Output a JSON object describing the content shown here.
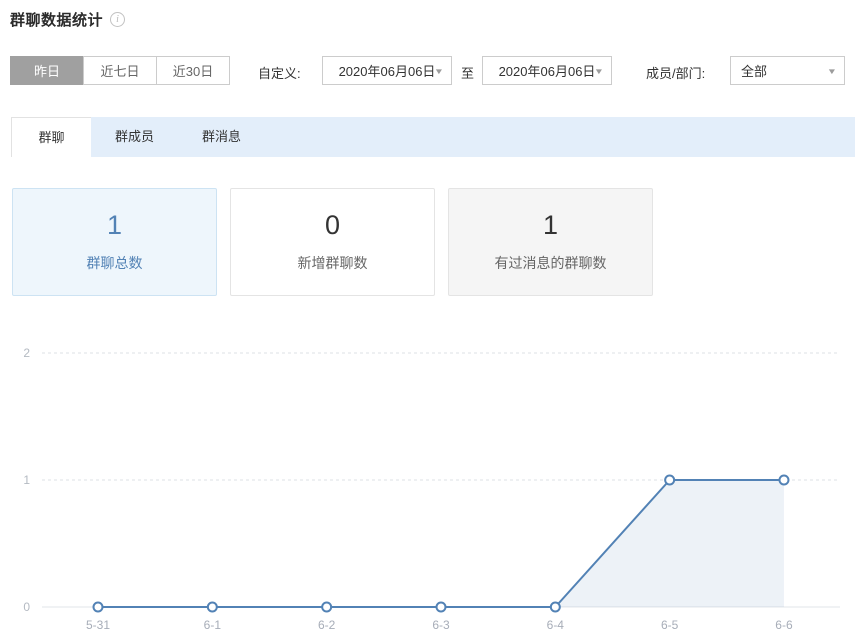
{
  "page": {
    "title": "群聊数据统计",
    "info_icon_glyph": "i"
  },
  "filters": {
    "quick_ranges": [
      {
        "label": "昨日",
        "selected": true
      },
      {
        "label": "近七日",
        "selected": false
      },
      {
        "label": "近30日",
        "selected": false
      }
    ],
    "custom_label": "自定义:",
    "date_from": "2020年06月06日",
    "to_label": "至",
    "date_to": "2020年06月06日",
    "member_label": "成员/部门:",
    "member_value": "全部"
  },
  "tabs": [
    {
      "label": "群聊",
      "active": true
    },
    {
      "label": "群成员",
      "active": false
    },
    {
      "label": "群消息",
      "active": false
    }
  ],
  "stats": [
    {
      "value": "1",
      "label": "群聊总数",
      "state": "selected"
    },
    {
      "value": "0",
      "label": "新增群聊数",
      "state": "normal"
    },
    {
      "value": "1",
      "label": "有过消息的群聊数",
      "state": "muted"
    }
  ],
  "colors": {
    "accent_blue": "#5282b5",
    "selected_card_bg": "#eef6fc",
    "selected_card_border": "#cde3f3",
    "tab_bar_bg": "#e3eefa",
    "selected_button_bg": "#a0a0a0"
  },
  "chart_data": {
    "type": "area",
    "x": [
      "5-31",
      "6-1",
      "6-2",
      "6-3",
      "6-4",
      "6-5",
      "6-6"
    ],
    "values": [
      0,
      0,
      0,
      0,
      0,
      1,
      1
    ],
    "ylim": [
      0,
      2
    ],
    "yticks": [
      0,
      1,
      2
    ],
    "grid": true,
    "legend": false,
    "line_color": "#5282b5",
    "point_fill": "#ffffff",
    "area_color": "rgba(82,130,181,0.10)",
    "axis_line_color": "#e2e5e9",
    "grid_line_color": "#dde0e5",
    "x_label_color": "#a7adb8",
    "y_label_color": "#b4bac2"
  }
}
